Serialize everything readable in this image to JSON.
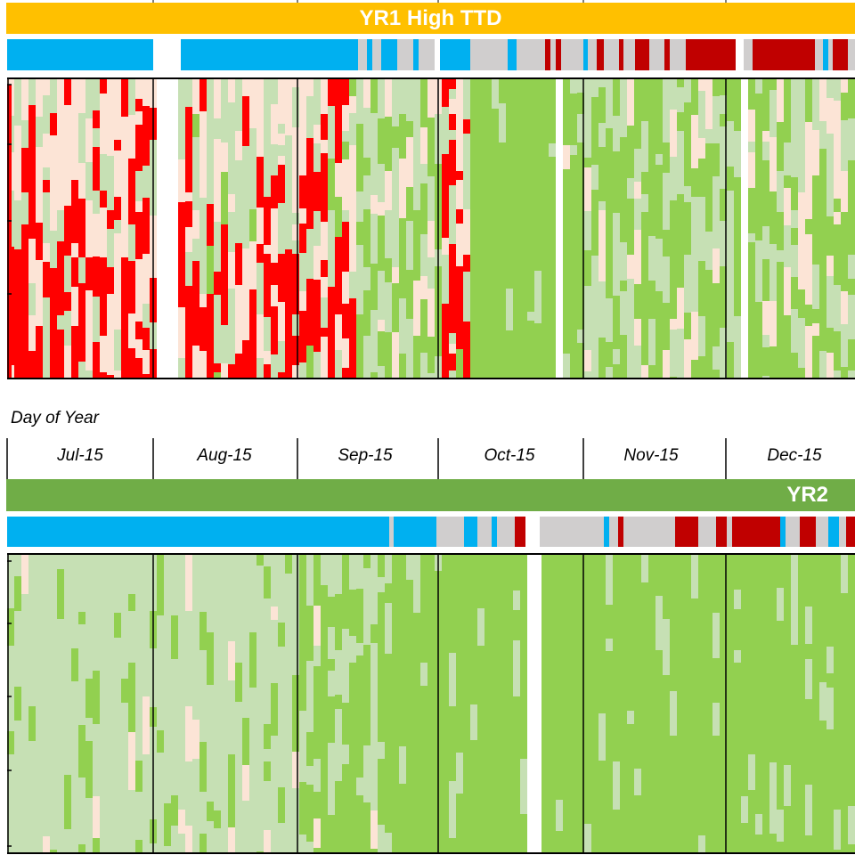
{
  "panels": [
    {
      "title": "YR1 High TTD",
      "banner_color": "#ffc000",
      "title_align": "center"
    },
    {
      "title": "YR2",
      "banner_color": "#70ad47",
      "title_align": "right"
    }
  ],
  "axis": {
    "label": "Day of Year",
    "months": [
      "Jul-15",
      "Aug-15",
      "Sep-15",
      "Oct-15",
      "Nov-15",
      "Dec-15"
    ]
  },
  "legend_colors": {
    "heat_red": "#ff0000",
    "light_pink": "#fce4d6",
    "light_green": "#c6e0b4",
    "green": "#92d050",
    "status_blue": "#00b0f0",
    "status_gray": "#d0cece",
    "status_darkred": "#c00000"
  },
  "chart_data": [
    {
      "type": "heatmap",
      "title": "YR1 High TTD",
      "xlabel": "Day of Year",
      "x_categories": [
        "Jul-15",
        "Aug-15",
        "Sep-15",
        "Oct-15",
        "Nov-15",
        "Dec-15"
      ],
      "color_scale": [
        "#ff0000",
        "#fce4d6",
        "#c6e0b4",
        "#92d050"
      ],
      "status_bar_colors": [
        "#00b0f0",
        "#d0cece",
        "#c00000"
      ],
      "grid": true
    },
    {
      "type": "heatmap",
      "title": "YR2",
      "xlabel": "Day of Year",
      "x_categories": [
        "Jul-15",
        "Aug-15",
        "Sep-15",
        "Oct-15",
        "Nov-15",
        "Dec-15"
      ],
      "color_scale": [
        "#fce4d6",
        "#c6e0b4",
        "#92d050"
      ],
      "status_bar_colors": [
        "#00b0f0",
        "#d0cece",
        "#c00000"
      ],
      "grid": true
    }
  ]
}
